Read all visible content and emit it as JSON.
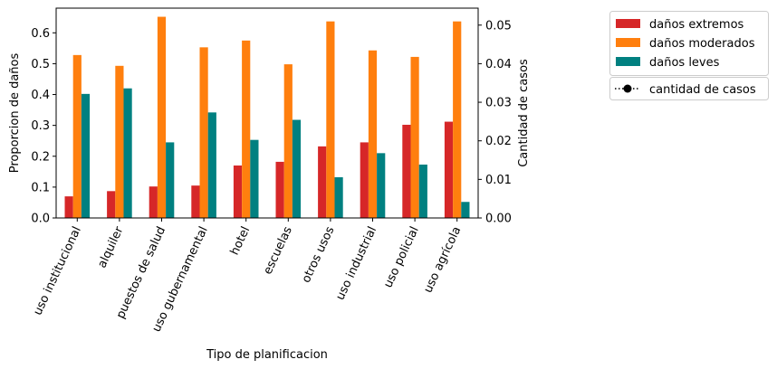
{
  "chart_data": {
    "type": "bar",
    "xlabel": "Tipo de planificacion",
    "ylabel_left": "Proporcion de daños",
    "ylabel_right": "Cantidad de casos",
    "ylim_left": [
      0,
      0.68
    ],
    "ylim_right": [
      0,
      0.0544
    ],
    "yticks_left": [
      0.0,
      0.1,
      0.2,
      0.3,
      0.4,
      0.5,
      0.6
    ],
    "yticks_left_labels": [
      "0.0",
      "0.1",
      "0.2",
      "0.3",
      "0.4",
      "0.5",
      "0.6"
    ],
    "yticks_right": [
      0.0,
      0.01,
      0.02,
      0.03,
      0.04,
      0.05
    ],
    "yticks_right_labels": [
      "0.00",
      "0.01",
      "0.02",
      "0.03",
      "0.04",
      "0.05"
    ],
    "categories": [
      "uso institucional",
      "alquiler",
      "puestos de salud",
      "uso gubernamental",
      "hotel",
      "escuelas",
      "otros usos",
      "uso industrial",
      "uso policial",
      "uso agrícola"
    ],
    "series": [
      {
        "name": "daños extremos",
        "color": "#d62728",
        "values": [
          0.07,
          0.087,
          0.102,
          0.105,
          0.17,
          0.182,
          0.232,
          0.245,
          0.302,
          0.312
        ]
      },
      {
        "name": "daños moderados",
        "color": "#ff7f0e",
        "values": [
          0.528,
          0.493,
          0.652,
          0.553,
          0.575,
          0.498,
          0.637,
          0.543,
          0.522,
          0.637
        ]
      },
      {
        "name": "daños leves",
        "color": "#008080",
        "values": [
          0.402,
          0.42,
          0.245,
          0.342,
          0.253,
          0.318,
          0.132,
          0.21,
          0.173,
          0.052
        ]
      }
    ],
    "line_series": {
      "name": "cantidad de casos",
      "values": []
    },
    "grid": false,
    "legend_position": "outside-right"
  }
}
